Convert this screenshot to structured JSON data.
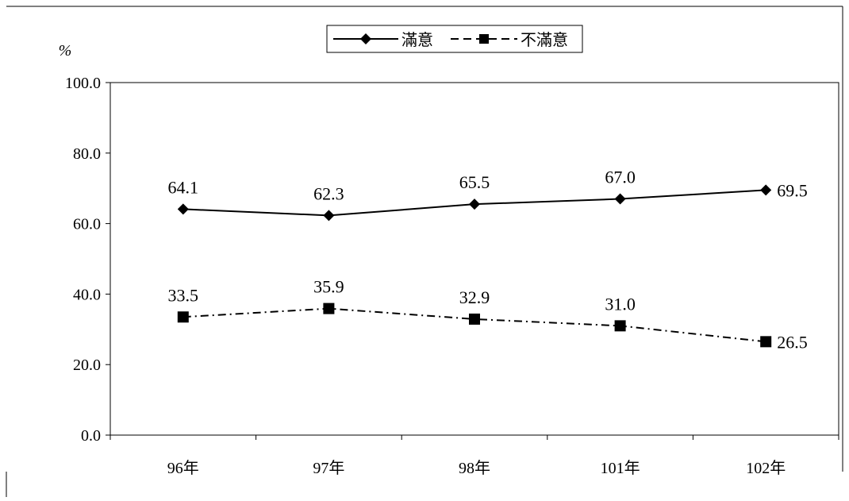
{
  "chart_data": {
    "type": "line",
    "categories": [
      "96年",
      "97年",
      "98年",
      "101年",
      "102年"
    ],
    "series": [
      {
        "name": "滿意",
        "values": [
          64.1,
          62.3,
          65.5,
          67.0,
          69.5
        ],
        "marker": "diamond",
        "line_style": "solid"
      },
      {
        "name": "不滿意",
        "values": [
          33.5,
          35.9,
          32.9,
          31.0,
          26.5
        ],
        "marker": "square",
        "line_style": "dash-dot"
      }
    ],
    "y_unit": "%",
    "ylim": [
      0,
      100
    ],
    "y_ticks": [
      "0.0",
      "20.0",
      "40.0",
      "60.0",
      "80.0",
      "100.0"
    ],
    "legend_position": "top-center",
    "grid": false,
    "colors": {
      "line": "#000000",
      "background": "#ffffff"
    }
  }
}
